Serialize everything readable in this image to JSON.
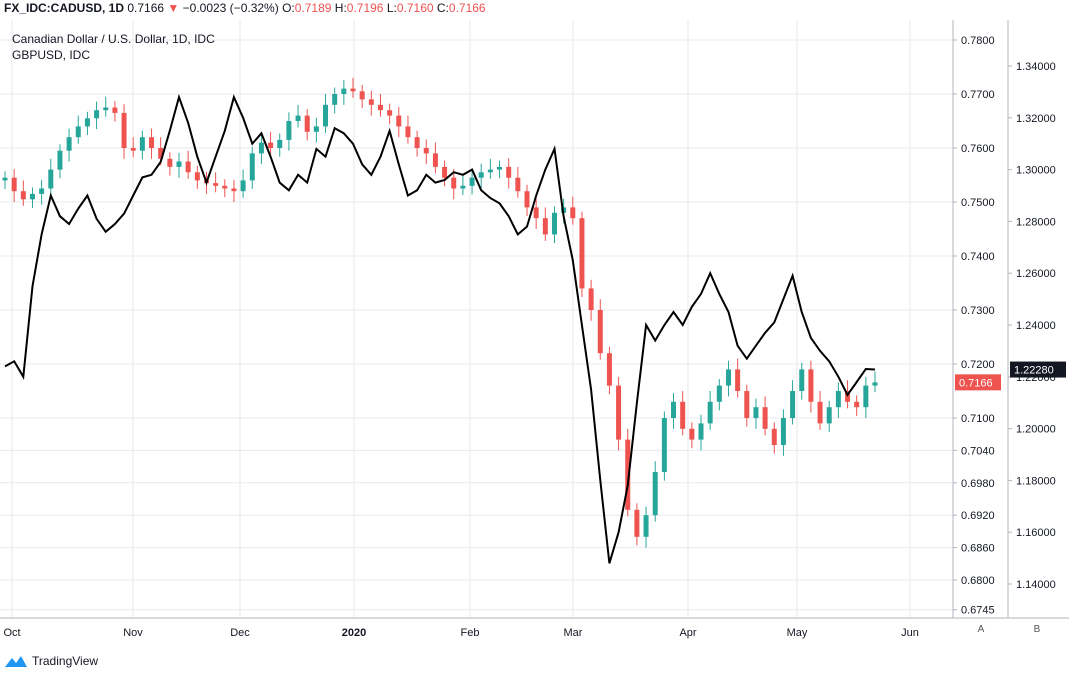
{
  "header": {
    "symbol": "FX_IDC:CADUSD, 1D",
    "last": "0.7166",
    "arrow": "▼",
    "change": "−0.0023 (−0.32%)",
    "o_label": "O:",
    "o_val": "0.7189",
    "h_label": "H:",
    "h_val": "0.7196",
    "l_label": "L:",
    "l_val": "0.7160",
    "c_label": "C:",
    "c_val": "0.7166"
  },
  "chart_title": "Canadian Dollar / U.S. Dollar, 1D, IDC",
  "overlay_title": "GBPUSD, IDC",
  "scale_buttons": [
    "A",
    "B"
  ],
  "footer": {
    "brand": "TradingView"
  },
  "colors": {
    "up": "#26a69a",
    "down": "#ef5350",
    "overlay": "#000000",
    "grid": "#e8eaee"
  },
  "chart_data": {
    "type": "line",
    "x_labels": [
      "Oct",
      "Nov",
      "Dec",
      "2020",
      "Feb",
      "Mar",
      "Apr",
      "May",
      "Jun"
    ],
    "cad_ticks": [
      "0.7800",
      "0.7700",
      "0.7600",
      "0.7500",
      "0.7400",
      "0.7300",
      "0.7200",
      "0.7100",
      "0.7040",
      "0.6980",
      "0.6920",
      "0.6860",
      "0.6800",
      "0.6745"
    ],
    "gbp_ticks": [
      "1.34000",
      "1.32000",
      "1.30000",
      "1.28000",
      "1.26000",
      "1.24000",
      "1.22000",
      "1.20000",
      "1.18000",
      "1.16000",
      "1.14000"
    ],
    "cad_last_label": "0.7166",
    "gbp_last_label": "1.22280",
    "series": [
      {
        "name": "Canadian Dollar / U.S. Dollar",
        "display": "candlestick",
        "values": [
          0.7545,
          0.752,
          0.7505,
          0.7515,
          0.7525,
          0.756,
          0.7595,
          0.762,
          0.764,
          0.7655,
          0.767,
          0.7675,
          0.7665,
          0.76,
          0.7595,
          0.762,
          0.76,
          0.758,
          0.7565,
          0.7575,
          0.7555,
          0.754,
          0.7535,
          0.753,
          0.7525,
          0.752,
          0.754,
          0.759,
          0.761,
          0.76,
          0.7615,
          0.765,
          0.766,
          0.763,
          0.764,
          0.768,
          0.77,
          0.771,
          0.7705,
          0.769,
          0.768,
          0.767,
          0.766,
          0.764,
          0.762,
          0.76,
          0.759,
          0.7565,
          0.7545,
          0.7525,
          0.753,
          0.7545,
          0.7555,
          0.756,
          0.7565,
          0.7545,
          0.752,
          0.749,
          0.747,
          0.744,
          0.748,
          0.749,
          0.747,
          0.734,
          0.73,
          0.722,
          0.716,
          0.706,
          0.693,
          0.688,
          0.692,
          0.7,
          0.71,
          0.713,
          0.708,
          0.706,
          0.709,
          0.713,
          0.716,
          0.719,
          0.715,
          0.71,
          0.712,
          0.708,
          0.705,
          0.71,
          0.715,
          0.719,
          0.713,
          0.709,
          0.712,
          0.715,
          0.713,
          0.712,
          0.716,
          0.7166
        ]
      },
      {
        "name": "GBPUSD, IDC",
        "display": "line",
        "values": [
          1.224,
          1.226,
          1.22,
          1.255,
          1.275,
          1.29,
          1.282,
          1.279,
          1.285,
          1.29,
          1.281,
          1.276,
          1.279,
          1.283,
          1.29,
          1.297,
          1.298,
          1.303,
          1.315,
          1.328,
          1.318,
          1.305,
          1.295,
          1.305,
          1.315,
          1.328,
          1.32,
          1.31,
          1.314,
          1.305,
          1.295,
          1.292,
          1.298,
          1.295,
          1.308,
          1.305,
          1.316,
          1.314,
          1.31,
          1.302,
          1.298,
          1.305,
          1.315,
          1.302,
          1.29,
          1.292,
          1.298,
          1.295,
          1.296,
          1.299,
          1.298,
          1.3,
          1.292,
          1.289,
          1.287,
          1.282,
          1.275,
          1.278,
          1.29,
          1.3,
          1.308,
          1.282,
          1.265,
          1.24,
          1.215,
          1.18,
          1.148,
          1.16,
          1.178,
          1.21,
          1.24,
          1.234,
          1.24,
          1.245,
          1.24,
          1.247,
          1.252,
          1.26,
          1.252,
          1.245,
          1.232,
          1.227,
          1.232,
          1.237,
          1.241,
          1.25,
          1.259,
          1.245,
          1.235,
          1.23,
          1.226,
          1.22,
          1.213,
          1.218,
          1.223,
          1.2228
        ]
      }
    ]
  }
}
